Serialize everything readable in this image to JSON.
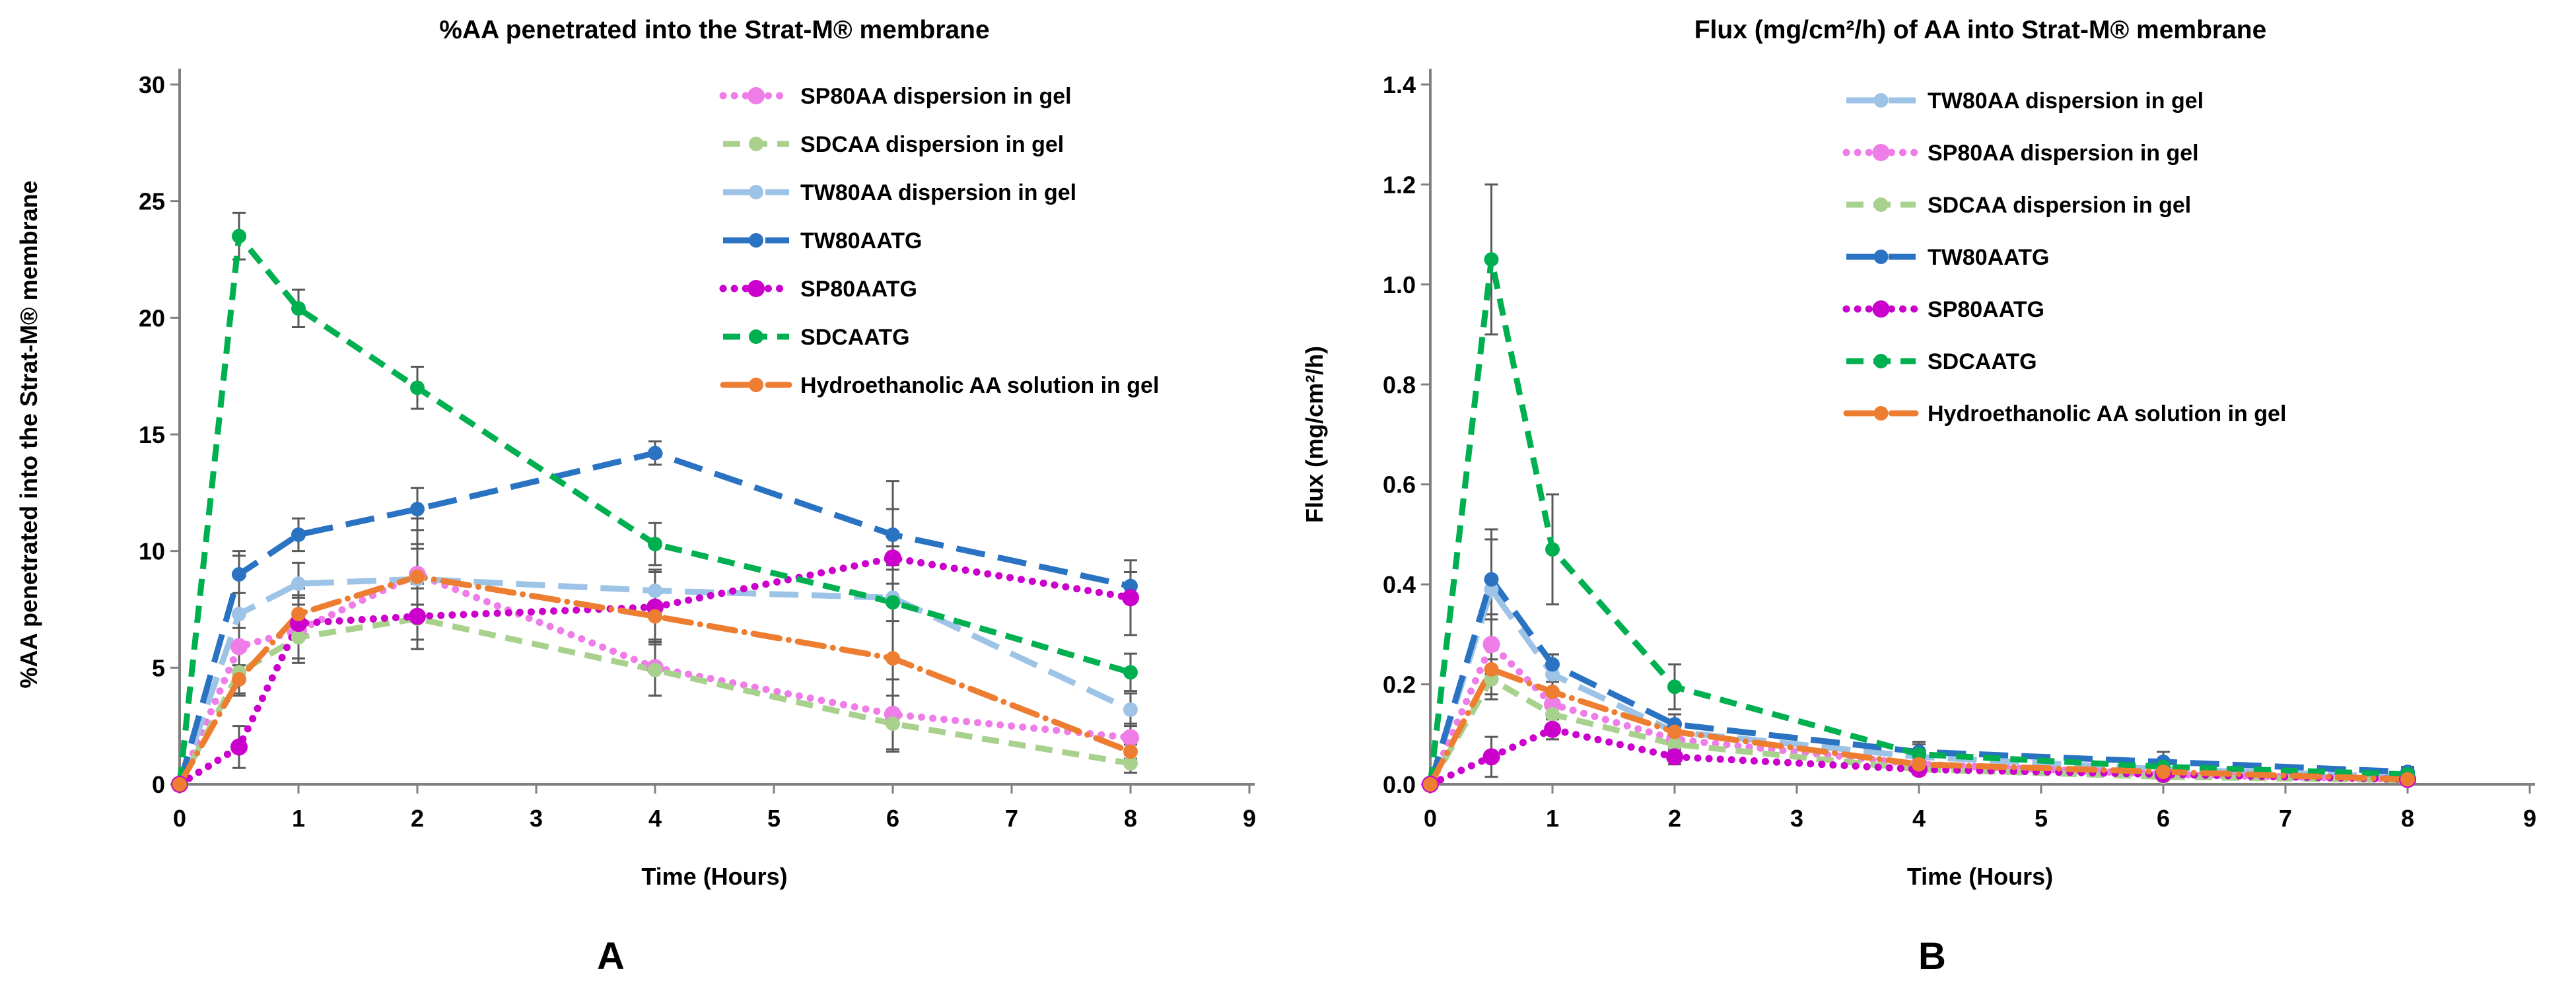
{
  "figure": {
    "background": "#FFFFFF"
  },
  "styles": {
    "axis_color": "#808080",
    "error_bar_color": "#595959",
    "text_color": "#000000"
  },
  "chart_data": [
    {
      "id": "A",
      "panel_label": "A",
      "type": "line",
      "title": "%AA penetrated into the Strat-M® membrane",
      "xlabel": "Time (Hours)",
      "ylabel": "%AA penetrated into the Strat-M® membrane",
      "x": [
        0,
        0.5,
        1,
        2,
        4,
        6,
        8
      ],
      "xlim": [
        0,
        9
      ],
      "ylim": [
        0,
        30
      ],
      "x_tick_labels": [
        "0",
        "1",
        "2",
        "3",
        "4",
        "5",
        "6",
        "7",
        "8",
        "9"
      ],
      "y_tick_labels": [
        "0",
        "5",
        "10",
        "15",
        "20",
        "25",
        "30"
      ],
      "grid": false,
      "legend_position": "top-right-inside",
      "series": [
        {
          "name": "SP80AA dispersion in gel",
          "color": "#EE7DE8",
          "line_style": "dot",
          "values": [
            0,
            5.9,
            6.6,
            9.0,
            5.0,
            3.0,
            2.0
          ],
          "errors": [
            0,
            0.8,
            1.4,
            1.3,
            1.2,
            1.5,
            0.6
          ]
        },
        {
          "name": "SDCAA dispersion in gel",
          "color": "#A9D18E",
          "line_style": "shortdash",
          "values": [
            0,
            4.8,
            6.3,
            7.1,
            4.9,
            2.6,
            0.9
          ],
          "errors": [
            0,
            1.0,
            0.9,
            1.3,
            1.1,
            1.2,
            0.4
          ]
        },
        {
          "name": "TW80AA dispersion in gel",
          "color": "#9DC3E6",
          "line_style": "longdash",
          "values": [
            0,
            7.3,
            8.6,
            8.8,
            8.3,
            8.0,
            3.2
          ],
          "errors": [
            0,
            2.7,
            0.9,
            2.6,
            0.9,
            5.0,
            0.7
          ]
        },
        {
          "name": "TW80AATG",
          "color": "#2A72C2",
          "line_style": "longdash",
          "values": [
            0,
            9.0,
            10.7,
            11.8,
            14.2,
            10.7,
            8.5
          ],
          "errors": [
            0,
            0.8,
            0.7,
            0.9,
            0.5,
            1.1,
            0.6
          ]
        },
        {
          "name": "SP80AATG",
          "color": "#CC00CC",
          "line_style": "dot",
          "values": [
            0,
            1.6,
            6.9,
            7.2,
            7.6,
            9.7,
            8.0
          ],
          "errors": [
            0,
            0.9,
            1.5,
            1.4,
            1.5,
            0.5,
            1.6
          ]
        },
        {
          "name": "SDCAATG",
          "color": "#00B050",
          "line_style": "shortdash",
          "values": [
            0,
            23.5,
            20.4,
            17.0,
            10.3,
            7.8,
            4.8
          ],
          "errors": [
            0,
            1.0,
            0.8,
            0.9,
            0.9,
            0.8,
            0.8
          ]
        },
        {
          "name": "Hydroethanolic AA solution in gel",
          "color": "#ED7D31",
          "line_style": "dashdot",
          "values": [
            0,
            4.5,
            7.3,
            8.9,
            7.2,
            5.4,
            1.4
          ],
          "errors": [
            0,
            0.6,
            0.8,
            1.2,
            1.0,
            4.0,
            0.3
          ]
        }
      ]
    },
    {
      "id": "B",
      "panel_label": "B",
      "type": "line",
      "title": "Flux (mg/cm²/h) of AA into Strat-M® membrane",
      "xlabel": "Time (Hours)",
      "ylabel": "Flux (mg/cm²/h)",
      "x": [
        0,
        0.5,
        1,
        2,
        4,
        6,
        8
      ],
      "xlim": [
        0,
        9
      ],
      "ylim": [
        0,
        1.4
      ],
      "x_tick_labels": [
        "0",
        "1",
        "2",
        "3",
        "4",
        "5",
        "6",
        "7",
        "8",
        "9"
      ],
      "y_tick_labels": [
        "0.0",
        "0.2",
        "0.4",
        "0.6",
        "0.8",
        "1.0",
        "1.2",
        "1.4"
      ],
      "grid": false,
      "legend_position": "top-right-inside",
      "series": [
        {
          "name": "TW80AA dispersion in gel",
          "color": "#9DC3E6",
          "line_style": "longdash",
          "values": [
            0,
            0.39,
            0.22,
            0.105,
            0.055,
            0.03,
            0.015
          ],
          "errors": [
            0,
            0.12,
            0.04,
            0.02,
            0.01,
            0.01,
            0.005
          ]
        },
        {
          "name": "SP80AA dispersion in gel",
          "color": "#EE7DE8",
          "line_style": "dot",
          "values": [
            0,
            0.28,
            0.16,
            0.09,
            0.04,
            0.02,
            0.01
          ],
          "errors": [
            0,
            0.06,
            0.03,
            0.015,
            0.01,
            0.005,
            0.005
          ]
        },
        {
          "name": "SDCAA dispersion in gel",
          "color": "#A9D18E",
          "line_style": "shortdash",
          "values": [
            0,
            0.21,
            0.14,
            0.08,
            0.03,
            0.015,
            0.008
          ],
          "errors": [
            0,
            0.04,
            0.02,
            0.015,
            0.01,
            0.005,
            0.005
          ]
        },
        {
          "name": "TW80AATG",
          "color": "#2A72C2",
          "line_style": "longdash",
          "values": [
            0,
            0.41,
            0.24,
            0.12,
            0.065,
            0.045,
            0.025
          ],
          "errors": [
            0,
            0.08,
            0.02,
            0.02,
            0.02,
            0.02,
            0.01
          ]
        },
        {
          "name": "SP80AATG",
          "color": "#CC00CC",
          "line_style": "dot",
          "values": [
            0,
            0.055,
            0.11,
            0.055,
            0.03,
            0.02,
            0.01
          ],
          "errors": [
            0,
            0.04,
            0.02,
            0.015,
            0.01,
            0.005,
            0.005
          ]
        },
        {
          "name": "SDCAATG",
          "color": "#00B050",
          "line_style": "shortdash",
          "values": [
            0,
            1.05,
            0.47,
            0.195,
            0.06,
            0.035,
            0.02
          ],
          "errors": [
            0,
            0.15,
            0.11,
            0.045,
            0.02,
            0.01,
            0.01
          ]
        },
        {
          "name": "Hydroethanolic AA solution in gel",
          "color": "#ED7D31",
          "line_style": "dashdot",
          "values": [
            0,
            0.23,
            0.185,
            0.105,
            0.04,
            0.025,
            0.01
          ],
          "errors": [
            0,
            0.05,
            0.02,
            0.015,
            0.01,
            0.005,
            0.005
          ]
        }
      ]
    }
  ]
}
